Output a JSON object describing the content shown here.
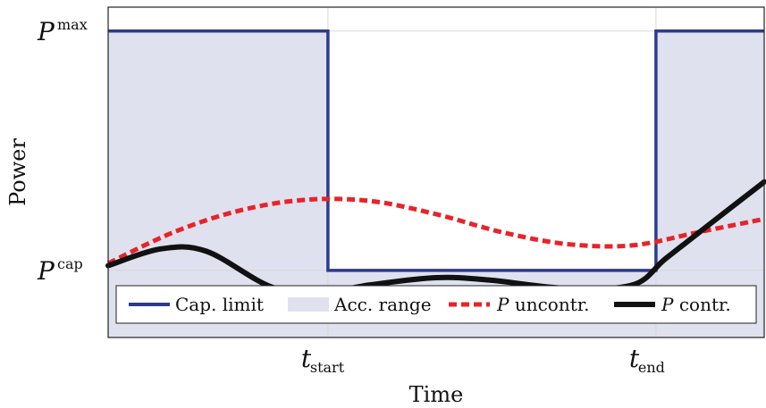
{
  "chart_data": {
    "type": "line",
    "xlabel": "Time",
    "ylabel": "Power",
    "xlim": [
      0,
      1
    ],
    "ylim": [
      -0.28,
      1.1
    ],
    "grid": true,
    "legend_position": "bottom",
    "x_ticks": [
      {
        "value": 0.335,
        "main": "t",
        "sub": "start"
      },
      {
        "value": 0.835,
        "main": "t",
        "sub": "end"
      }
    ],
    "y_ticks": [
      {
        "value": 1.0,
        "main": "P",
        "sup": "max"
      },
      {
        "value": 0.0,
        "main": "P",
        "sup": "cap"
      }
    ],
    "legend": [
      {
        "label": "Cap. limit",
        "italic_prefix": "",
        "style": "solid-blue"
      },
      {
        "label": "Acc. range",
        "italic_prefix": "",
        "style": "fill"
      },
      {
        "label": "uncontr.",
        "italic_prefix": "P",
        "style": "dashed-red"
      },
      {
        "label": "contr.",
        "italic_prefix": "P",
        "style": "solid-black"
      }
    ],
    "colors": {
      "cap_limit": "#2e3a8c",
      "acc_range": "#dfe1ee",
      "uncontrolled": "#e8232a",
      "controlled": "#111111",
      "grid": "#d7d7d7"
    },
    "series": [
      {
        "name": "Cap. limit",
        "x": [
          0,
          0.335,
          0.335,
          0.835,
          0.835,
          1
        ],
        "y": [
          1.0,
          1.0,
          0.0,
          0.0,
          1.0,
          1.0
        ]
      },
      {
        "name": "P uncontr.",
        "x": [
          0,
          0.1,
          0.2,
          0.3,
          0.4,
          0.5,
          0.6,
          0.7,
          0.8,
          0.9,
          1.0
        ],
        "y": [
          0.03,
          0.16,
          0.25,
          0.295,
          0.29,
          0.235,
          0.16,
          0.11,
          0.105,
          0.16,
          0.215
        ]
      },
      {
        "name": "P contr.",
        "x": [
          0,
          0.08,
          0.15,
          0.25,
          0.33,
          0.4,
          0.5,
          0.58,
          0.7,
          0.8,
          0.85,
          0.92,
          1.0
        ],
        "y": [
          0.02,
          0.09,
          0.08,
          -0.07,
          -0.09,
          -0.06,
          -0.03,
          -0.04,
          -0.075,
          -0.06,
          0.05,
          0.2,
          0.37
        ]
      }
    ]
  }
}
